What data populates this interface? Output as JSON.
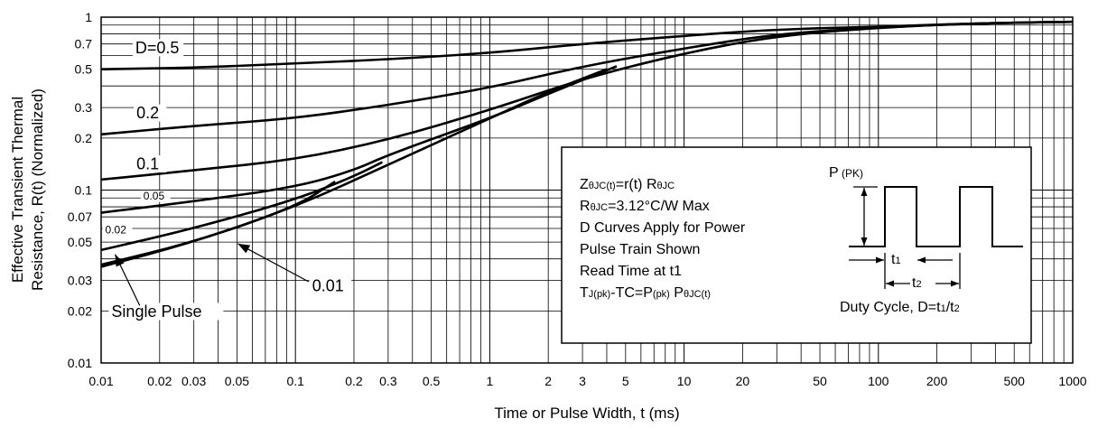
{
  "chart_data": {
    "type": "line",
    "x_scale": "log",
    "y_scale": "log",
    "xlim": [
      0.01,
      1000
    ],
    "ylim": [
      0.01,
      1
    ],
    "grid": true,
    "xlabel": "Time or Pulse Width, t (ms)",
    "ylabel_line1": "Effective Transient Thermal",
    "ylabel_line2": "Resistance, R(t)  (Normalized)",
    "x_ticks": [
      {
        "value": 0.01,
        "label": "0.01"
      },
      {
        "value": 0.02,
        "label": "0.02"
      },
      {
        "value": 0.03,
        "label": "0.03"
      },
      {
        "value": 0.05,
        "label": "0.05"
      },
      {
        "value": 0.1,
        "label": "0.1"
      },
      {
        "value": 0.2,
        "label": "0.2"
      },
      {
        "value": 0.3,
        "label": "0.3"
      },
      {
        "value": 0.5,
        "label": "0.5"
      },
      {
        "value": 1,
        "label": "1"
      },
      {
        "value": 2,
        "label": "2"
      },
      {
        "value": 3,
        "label": "3"
      },
      {
        "value": 5,
        "label": "5"
      },
      {
        "value": 10,
        "label": "10"
      },
      {
        "value": 20,
        "label": "20"
      },
      {
        "value": 50,
        "label": "50"
      },
      {
        "value": 100,
        "label": "100"
      },
      {
        "value": 200,
        "label": "200"
      },
      {
        "value": 500,
        "label": "500"
      },
      {
        "value": 1000,
        "label": "1000"
      }
    ],
    "y_ticks": [
      {
        "value": 1,
        "label": "1"
      },
      {
        "value": 0.7,
        "label": "0.7"
      },
      {
        "value": 0.5,
        "label": "0.5"
      },
      {
        "value": 0.3,
        "label": "0.3"
      },
      {
        "value": 0.2,
        "label": "0.2"
      },
      {
        "value": 0.1,
        "label": "0.1"
      },
      {
        "value": 0.07,
        "label": "0.07"
      },
      {
        "value": 0.05,
        "label": "0.05"
      },
      {
        "value": 0.03,
        "label": "0.03"
      },
      {
        "value": 0.02,
        "label": "0.02"
      },
      {
        "value": 0.01,
        "label": "0.01"
      }
    ],
    "series": [
      {
        "name": "D=0.5",
        "x": [
          0.01,
          0.03,
          0.1,
          0.3,
          1,
          3,
          10,
          30,
          100,
          300,
          1000
        ],
        "y": [
          0.5,
          0.51,
          0.54,
          0.57,
          0.62,
          0.7,
          0.78,
          0.85,
          0.88,
          0.92,
          0.94
        ]
      },
      {
        "name": "0.2",
        "x": [
          0.01,
          0.03,
          0.1,
          0.3,
          1,
          3,
          10,
          30,
          100,
          300,
          1000
        ],
        "y": [
          0.21,
          0.235,
          0.26,
          0.31,
          0.39,
          0.52,
          0.66,
          0.8,
          0.87,
          0.92,
          0.94
        ]
      },
      {
        "name": "0.1",
        "x": [
          0.01,
          0.03,
          0.1,
          0.3,
          1,
          3,
          10,
          30,
          100,
          300,
          1000
        ],
        "y": [
          0.115,
          0.13,
          0.15,
          0.195,
          0.29,
          0.44,
          0.62,
          0.78,
          0.87,
          0.92,
          0.94
        ]
      },
      {
        "name": "0.05",
        "x": [
          0.01,
          0.03,
          0.1,
          0.2,
          0.3,
          1,
          2,
          4.5
        ],
        "y": [
          0.074,
          0.086,
          0.104,
          0.13,
          0.16,
          0.26,
          0.36,
          0.52
        ]
      },
      {
        "name": "0.02",
        "x": [
          0.01,
          0.03,
          0.1,
          0.2,
          0.28
        ],
        "y": [
          0.045,
          0.06,
          0.088,
          0.12,
          0.145
        ]
      },
      {
        "name": "0.01",
        "x": [
          0.01,
          0.03,
          0.1,
          0.16
        ],
        "y": [
          0.037,
          0.05,
          0.08,
          0.112
        ]
      },
      {
        "name": "Single Pulse",
        "x": [
          0.01,
          0.03,
          0.1,
          0.3,
          1,
          2,
          4
        ],
        "y": [
          0.036,
          0.05,
          0.08,
          0.14,
          0.26,
          0.37,
          0.5
        ]
      }
    ],
    "curve_labels": [
      {
        "text": "D=0.5",
        "x": 0.015,
        "y": 0.62,
        "size": 18
      },
      {
        "text": "0.2",
        "x": 0.0152,
        "y": 0.26,
        "size": 18
      },
      {
        "text": "0.1",
        "x": 0.0152,
        "y": 0.132,
        "size": 18
      },
      {
        "text": "0.05",
        "x": 0.0165,
        "y": 0.088,
        "size": 12
      },
      {
        "text": "0.02",
        "x": 0.0105,
        "y": 0.056,
        "size": 12
      },
      {
        "text": "0.01",
        "x": 0.122,
        "y": 0.026,
        "size": 18
      },
      {
        "text": "Single Pulse",
        "x": 0.0113,
        "y": 0.0185,
        "size": 18
      }
    ],
    "annotation_box": {
      "lines": [
        {
          "parts": [
            {
              "t": "Z"
            },
            {
              "t": "θJC(t)",
              "sub": true
            },
            {
              "t": "=r(t) R"
            },
            {
              "t": "θJC",
              "sub": true
            }
          ]
        },
        {
          "parts": [
            {
              "t": "R"
            },
            {
              "t": "θJC",
              "sub": true
            },
            {
              "t": "=3.12°C/W Max"
            }
          ]
        },
        {
          "parts": [
            {
              "t": "D Curves Apply for Power"
            }
          ]
        },
        {
          "parts": [
            {
              "t": "Pulse Train Shown"
            }
          ]
        },
        {
          "parts": [
            {
              "t": "Read Time at t1"
            }
          ]
        },
        {
          "parts": [
            {
              "t": "T"
            },
            {
              "t": "J(pk)",
              "sub": true
            },
            {
              "t": "-TC=P"
            },
            {
              "t": "(pk)",
              "sub": true
            },
            {
              "t": " P"
            },
            {
              "t": "θJC(t)",
              "sub": true
            }
          ]
        }
      ],
      "diagram": {
        "p_label": "P",
        "p_sub": "(PK)",
        "t1_label": "t1",
        "t2_label": "t2",
        "duty": [
          {
            "t": "Duty Cycle, D=t"
          },
          {
            "t": "1",
            "sub": true
          },
          {
            "t": "/t"
          },
          {
            "t": "2",
            "sub": true
          }
        ]
      }
    }
  }
}
